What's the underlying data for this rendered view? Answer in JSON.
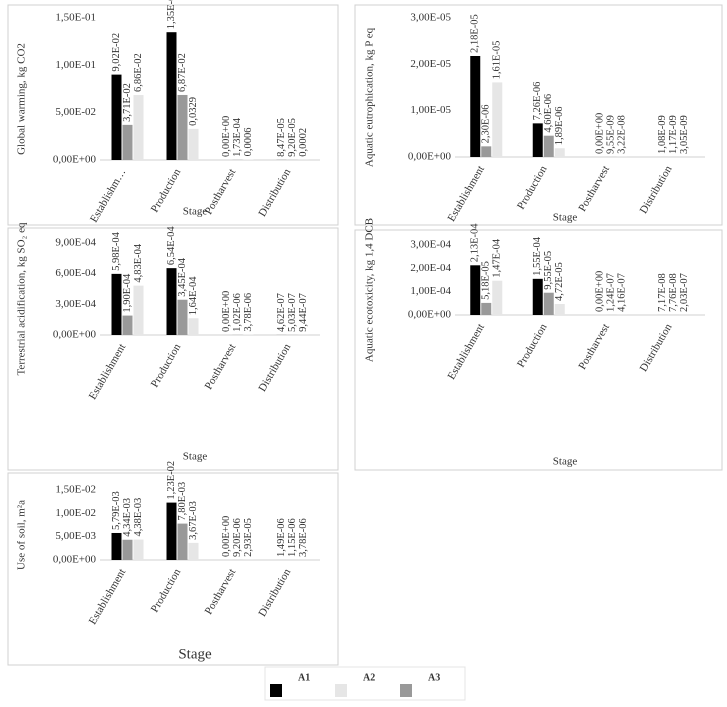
{
  "chart_data": [
    {
      "type": "bar",
      "y_label": "Global warming, kg CO2",
      "x_label": "Stage",
      "categories": [
        "Establishm…",
        "Production",
        "Postharvest",
        "Distribution"
      ],
      "series": [
        {
          "name": "A1",
          "color": "#000000",
          "values": [
            0.0902,
            0.135,
            0,
            8.47e-05
          ],
          "value_labels": [
            "9,02E-02",
            "1,35E-01",
            "0,00E+00",
            "8,47E-05"
          ]
        },
        {
          "name": "A3",
          "color": "#999999",
          "values": [
            0.0371,
            0.0687,
            0.000173,
            9.2e-05
          ],
          "value_labels": [
            "3,71E-02",
            "6,87E-02",
            "1,73E-04",
            "9,20E-05"
          ]
        },
        {
          "name": "A2",
          "color": "#e6e6e6",
          "values": [
            0.0686,
            0.0329,
            0.0006,
            0.0002
          ],
          "value_labels": [
            "6,86E-02",
            "0,0329",
            "0,0006",
            "0,0002"
          ]
        }
      ],
      "ylim": [
        0,
        0.15
      ],
      "yticks": [
        {
          "value": 0,
          "label": "0,00E+00"
        },
        {
          "value": 0.05,
          "label": "5,00E-02"
        },
        {
          "value": 0.1,
          "label": "1,00E-01"
        },
        {
          "value": 0.15,
          "label": "1,50E-01"
        }
      ]
    },
    {
      "type": "bar",
      "y_label": "Aquatic eutrophication, kg P eq",
      "x_label": "Stage",
      "categories": [
        "Establishment",
        "Production",
        "Postharvest",
        "Distribution"
      ],
      "series": [
        {
          "color": "#000000",
          "values": [
            2.18e-05,
            7.26e-06,
            0,
            1.08e-09
          ],
          "value_labels": [
            "2,18E-05",
            "7,26E-06",
            "0,00E+00",
            "1,08E-09"
          ]
        },
        {
          "color": "#999999",
          "values": [
            2.3e-06,
            4.6e-06,
            9.55e-09,
            1.17e-09
          ],
          "value_labels": [
            "2,30E-06",
            "4,60E-06",
            "9,55E-09",
            "1,17E-09"
          ]
        },
        {
          "color": "#e6e6e6",
          "values": [
            1.61e-05,
            1.89e-06,
            3.22e-08,
            3.05e-09
          ],
          "value_labels": [
            "1,61E-05",
            "1,89E-06",
            "3,22E-08",
            "3,05E-09"
          ]
        }
      ],
      "ylim": [
        0,
        3e-05
      ],
      "yticks": [
        {
          "value": 0,
          "label": "0,00E+00"
        },
        {
          "value": 1e-05,
          "label": "1,00E-05"
        },
        {
          "value": 2e-05,
          "label": "2,00E-05"
        },
        {
          "value": 3e-05,
          "label": "3,00E-05"
        }
      ]
    },
    {
      "type": "bar",
      "y_label": "Terrestrial acidification, kg SO₂ eq",
      "x_label": "Stage",
      "categories": [
        "Establishment",
        "Production",
        "Postharvest",
        "Distribution"
      ],
      "series": [
        {
          "color": "#000000",
          "values": [
            0.000598,
            0.000654,
            0,
            4.62e-07
          ],
          "value_labels": [
            "5,98E-04",
            "6,54E-04",
            "0,00E+00",
            "4,62E-07"
          ]
        },
        {
          "color": "#999999",
          "values": [
            0.00019,
            0.000345,
            1.02e-06,
            5.03e-07
          ],
          "value_labels": [
            "1,90E-04",
            "3,45E-04",
            "1,02E-06",
            "5,03E-07"
          ]
        },
        {
          "color": "#e6e6e6",
          "values": [
            0.000483,
            0.000164,
            3.78e-06,
            9.44e-07
          ],
          "value_labels": [
            "4,83E-04",
            "1,64E-04",
            "3,78E-06",
            "9,44E-07"
          ]
        }
      ],
      "ylim": [
        0,
        0.0009
      ],
      "yticks": [
        {
          "value": 0,
          "label": "0,00E+00"
        },
        {
          "value": 0.0003,
          "label": "3,00E-04"
        },
        {
          "value": 0.0006,
          "label": "6,00E-04"
        },
        {
          "value": 0.0009,
          "label": "9,00E-04"
        }
      ]
    },
    {
      "type": "bar",
      "y_label": "Aquatic ecotoxicity, kg 1,4 DCB",
      "x_label": "Stage",
      "categories": [
        "Establishment",
        "Production",
        "Postharvest",
        "Distribution"
      ],
      "series": [
        {
          "color": "#000000",
          "values": [
            0.000213,
            0.000155,
            0,
            7.17e-08
          ],
          "value_labels": [
            "2,13E-04",
            "1,55E-04",
            "0,00E+00",
            "7,17E-08"
          ]
        },
        {
          "color": "#999999",
          "values": [
            5.18e-05,
            9.55e-05,
            1.24e-07,
            7.76e-08
          ],
          "value_labels": [
            "5,18E-05",
            "9,55E-05",
            "1,24E-07",
            "7,76E-08"
          ]
        },
        {
          "color": "#e6e6e6",
          "values": [
            0.000147,
            4.72e-05,
            4.16e-07,
            2.03e-07
          ],
          "value_labels": [
            "1,47E-04",
            "4,72E-05",
            "4,16E-07",
            "2,03E-07"
          ]
        }
      ],
      "ylim": [
        0,
        0.0003
      ],
      "yticks": [
        {
          "value": 0,
          "label": "0,00E+00"
        },
        {
          "value": 0.0001,
          "label": "1,00E-04"
        },
        {
          "value": 0.0002,
          "label": "2,00E-04"
        },
        {
          "value": 0.0003,
          "label": "3,00E-04"
        }
      ]
    },
    {
      "type": "bar",
      "y_label": "Use of soil, m²a",
      "x_label": "Stage",
      "categories": [
        "Establishment",
        "Production",
        "Postharvest",
        "Distribution"
      ],
      "series": [
        {
          "color": "#000000",
          "values": [
            0.00579,
            0.0123,
            0,
            1.49e-06
          ],
          "value_labels": [
            "5,79E-03",
            "1,23E-02",
            "0,00E+00",
            "1,49E-06"
          ]
        },
        {
          "color": "#999999",
          "values": [
            0.00434,
            0.0078,
            9.2e-06,
            1.15e-06
          ],
          "value_labels": [
            "4,34E-03",
            "7,80E-03",
            "9,20E-06",
            "1,15E-06"
          ]
        },
        {
          "color": "#e6e6e6",
          "values": [
            0.00438,
            0.00367,
            2.93e-05,
            3.78e-06
          ],
          "value_labels": [
            "4,38E-03",
            "3,67E-03",
            "2,93E-05",
            "3,78E-06"
          ]
        }
      ],
      "ylim": [
        0,
        0.015
      ],
      "yticks": [
        {
          "value": 0,
          "label": "0,00E+00"
        },
        {
          "value": 0.005,
          "label": "5,00E-03"
        },
        {
          "value": 0.01,
          "label": "1,00E-02"
        },
        {
          "value": 0.015,
          "label": "1,50E-02"
        }
      ]
    }
  ]
}
